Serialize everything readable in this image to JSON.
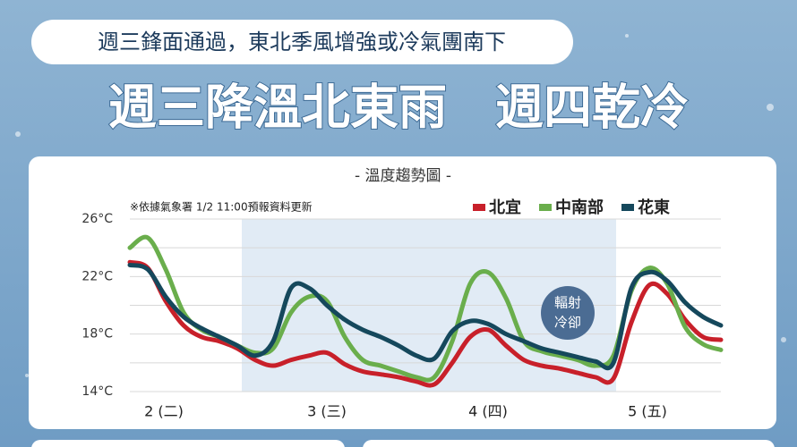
{
  "header": {
    "subtitle": "週三鋒面通過，東北季風增強或冷氣團南下",
    "title": "週三降溫北東雨　週四乾冷"
  },
  "chart_data": {
    "type": "line",
    "title": "- 溫度趨勢圖 -",
    "note": "※依據氣象署 1/2  11:00預報資料更新",
    "annotation": [
      "輻射",
      "冷卻"
    ],
    "x": [
      0,
      1,
      2,
      3,
      4,
      5,
      6,
      7,
      8,
      9,
      10,
      11,
      12,
      13,
      14,
      15,
      16,
      17,
      18,
      19,
      20,
      21,
      22,
      23,
      24,
      25,
      26,
      27,
      28,
      29,
      30,
      31,
      32,
      33
    ],
    "xlim": [
      0,
      33
    ],
    "xticks": [
      {
        "value": 1.9,
        "label": "2 (二)"
      },
      {
        "value": 11,
        "label": "3 (三)"
      },
      {
        "value": 20,
        "label": "4 (四)"
      },
      {
        "value": 28.9,
        "label": "5 (五)"
      }
    ],
    "ylim": [
      14,
      26
    ],
    "yticks": [
      {
        "value": 26,
        "label": "26°C"
      },
      {
        "value": 22,
        "label": "22°C"
      },
      {
        "value": 18,
        "label": "18°C"
      },
      {
        "value": 14,
        "label": "14°C"
      }
    ],
    "minor_yticks": [
      24,
      20,
      16
    ],
    "grid": true,
    "legend": "top-right",
    "series": [
      {
        "name": "北宜",
        "color": "#c8202a",
        "values": [
          23.0,
          22.6,
          20.3,
          18.6,
          17.8,
          17.5,
          17.0,
          16.2,
          15.8,
          16.2,
          16.5,
          16.7,
          15.9,
          15.4,
          15.2,
          15.0,
          14.7,
          14.5,
          16.0,
          17.8,
          18.3,
          17.2,
          16.2,
          15.8,
          15.6,
          15.3,
          15.0,
          14.9,
          18.8,
          21.4,
          20.8,
          19.0,
          17.8,
          17.6
        ]
      },
      {
        "name": "中南部",
        "color": "#6aae4c",
        "values": [
          24.0,
          24.7,
          22.5,
          19.5,
          18.3,
          17.8,
          17.2,
          16.7,
          17.0,
          19.5,
          20.6,
          20.3,
          17.8,
          16.2,
          15.8,
          15.4,
          15.0,
          15.0,
          17.5,
          21.5,
          22.3,
          20.5,
          17.5,
          16.8,
          16.5,
          16.2,
          15.8,
          16.5,
          21.0,
          22.6,
          21.5,
          18.5,
          17.3,
          16.9
        ]
      },
      {
        "name": "花東",
        "color": "#15485c",
        "values": [
          22.8,
          22.5,
          20.6,
          19.2,
          18.4,
          17.8,
          17.2,
          16.5,
          17.5,
          21.2,
          21.2,
          20.0,
          19.0,
          18.3,
          17.8,
          17.2,
          16.5,
          16.3,
          18.2,
          18.9,
          18.7,
          18.0,
          17.5,
          17.0,
          16.7,
          16.4,
          16.1,
          16.0,
          21.2,
          22.3,
          21.7,
          20.2,
          19.2,
          18.6
        ]
      }
    ]
  }
}
